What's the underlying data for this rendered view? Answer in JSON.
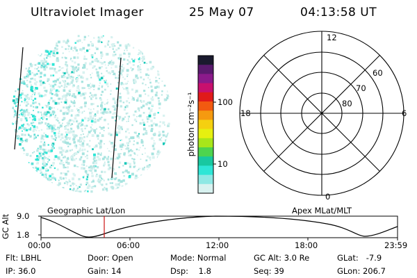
{
  "header": {
    "instrument": "Ultraviolet Imager",
    "date": "25 May 07",
    "time": "04:13:58 UT"
  },
  "colorbar": {
    "unit_label": "photon cm⁻²s⁻¹",
    "ticks": [
      "100",
      "10"
    ],
    "colors": [
      "#1a1a2e",
      "#5a1a6e",
      "#8b1a8b",
      "#c8106e",
      "#e01a1a",
      "#f25a10",
      "#f59a10",
      "#f5d010",
      "#e6f010",
      "#a8e61a",
      "#4ed44e",
      "#18c8a0",
      "#2ee6d6",
      "#8ee8e4",
      "#d8f2f0"
    ]
  },
  "polar_plot": {
    "mlt_labels": [
      "12",
      "18",
      "6",
      "0"
    ],
    "lat_labels": [
      "60",
      "70",
      "80"
    ]
  },
  "timeline": {
    "ylabel": "GC Alt",
    "left_title": "Geographic Lat/Lon",
    "right_title": "Apex MLat/MLT",
    "y_ticks": [
      "9.0",
      "1.8"
    ],
    "x_ticks": [
      "00:00",
      "06:00",
      "12:00",
      "18:00",
      "23:59"
    ]
  },
  "info": {
    "flt": "Flt: LBHL",
    "ip": "IP: 36.0",
    "door": "Door: Open",
    "gain": "Gain: 14",
    "mode": "Mode: Normal",
    "dsp": "Dsp:    1.8",
    "gc_alt": "GC Alt: 3.0 Re",
    "seq": "Seq: 39",
    "glat": "GLat:   -7.9",
    "glon": "GLon: 206.7"
  }
}
